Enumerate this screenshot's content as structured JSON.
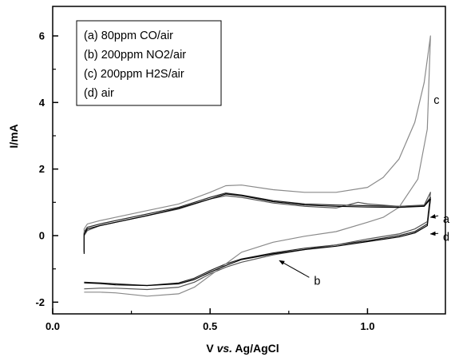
{
  "chart_data": {
    "type": "line",
    "title": "",
    "xlabel_parts": [
      "V ",
      "vs.",
      " Ag/AgCl"
    ],
    "ylabel": "I/mA",
    "xlim": [
      0.0,
      1.25
    ],
    "ylim": [
      -2.3,
      6.5
    ],
    "x_ticks": [
      0.0,
      0.5,
      1.0
    ],
    "x_tick_labels": [
      "0.0",
      "0.5",
      "1.0"
    ],
    "y_ticks": [
      -2,
      0,
      2,
      4,
      6
    ],
    "y_tick_labels": [
      "-2",
      "0",
      "2",
      "4",
      "6"
    ],
    "grid": false,
    "legend_position": "top-left",
    "legend": [
      "(a) 80ppm CO/air",
      "(b) 200ppm NO2/air",
      "(c) 200ppm H2S/air",
      "(d) air"
    ],
    "series": [
      {
        "name": "(a) 80ppm CO/air",
        "id": "a",
        "color": "#222222",
        "x": [
          0.1,
          0.1,
          0.11,
          0.15,
          0.2,
          0.3,
          0.4,
          0.5,
          0.55,
          0.6,
          0.7,
          0.8,
          0.9,
          1.0,
          1.1,
          1.18,
          1.2,
          1.19,
          1.15,
          1.1,
          1.0,
          0.9,
          0.8,
          0.7,
          0.6,
          0.55,
          0.5,
          0.45,
          0.4,
          0.3,
          0.2,
          0.15,
          0.1
        ],
        "y": [
          -0.5,
          0.1,
          0.25,
          0.35,
          0.45,
          0.65,
          0.85,
          1.15,
          1.28,
          1.22,
          1.05,
          0.95,
          0.92,
          0.9,
          0.88,
          0.9,
          1.15,
          0.35,
          0.12,
          0.0,
          -0.15,
          -0.28,
          -0.38,
          -0.52,
          -0.7,
          -0.85,
          -1.05,
          -1.28,
          -1.42,
          -1.5,
          -1.45,
          -1.42,
          -1.4
        ]
      },
      {
        "name": "(b) 200ppm NO2/air",
        "id": "b",
        "color": "#555555",
        "x": [
          0.1,
          0.1,
          0.11,
          0.15,
          0.2,
          0.3,
          0.4,
          0.5,
          0.55,
          0.6,
          0.7,
          0.8,
          0.9,
          0.97,
          1.0,
          1.1,
          1.18,
          1.2,
          1.19,
          1.15,
          1.1,
          1.0,
          0.9,
          0.8,
          0.7,
          0.6,
          0.55,
          0.5,
          0.45,
          0.4,
          0.3,
          0.2,
          0.15,
          0.1
        ],
        "y": [
          -0.45,
          0.0,
          0.15,
          0.3,
          0.4,
          0.6,
          0.8,
          1.1,
          1.2,
          1.15,
          0.98,
          0.88,
          0.83,
          1.0,
          0.95,
          0.88,
          0.92,
          1.3,
          0.42,
          0.2,
          0.05,
          -0.1,
          -0.28,
          -0.42,
          -0.58,
          -0.8,
          -0.95,
          -1.15,
          -1.4,
          -1.55,
          -1.62,
          -1.58,
          -1.58,
          -1.6
        ]
      },
      {
        "name": "(c) 200ppm H2S/air",
        "id": "c",
        "color": "#8a8a8a",
        "x": [
          0.1,
          0.1,
          0.11,
          0.15,
          0.2,
          0.3,
          0.4,
          0.5,
          0.55,
          0.6,
          0.7,
          0.8,
          0.9,
          1.0,
          1.05,
          1.1,
          1.15,
          1.18,
          1.2,
          1.19,
          1.16,
          1.1,
          1.05,
          1.0,
          0.9,
          0.8,
          0.7,
          0.6,
          0.55,
          0.5,
          0.45,
          0.4,
          0.3,
          0.2,
          0.15,
          0.1
        ],
        "y": [
          -0.35,
          0.2,
          0.35,
          0.45,
          0.55,
          0.75,
          0.95,
          1.3,
          1.5,
          1.52,
          1.38,
          1.3,
          1.3,
          1.45,
          1.75,
          2.3,
          3.4,
          4.6,
          6.0,
          3.2,
          1.7,
          0.85,
          0.55,
          0.4,
          0.12,
          -0.02,
          -0.2,
          -0.5,
          -0.85,
          -1.2,
          -1.55,
          -1.75,
          -1.82,
          -1.72,
          -1.7,
          -1.7
        ]
      },
      {
        "name": "(d) air",
        "id": "d",
        "color": "#000000",
        "x": [
          0.1,
          0.1,
          0.11,
          0.15,
          0.2,
          0.3,
          0.4,
          0.5,
          0.55,
          0.6,
          0.7,
          0.8,
          0.9,
          1.0,
          1.1,
          1.18,
          1.2,
          1.19,
          1.15,
          1.1,
          1.0,
          0.9,
          0.8,
          0.7,
          0.6,
          0.55,
          0.5,
          0.45,
          0.4,
          0.3,
          0.2,
          0.15,
          0.1
        ],
        "y": [
          -0.55,
          0.05,
          0.2,
          0.3,
          0.4,
          0.6,
          0.82,
          1.1,
          1.25,
          1.2,
          1.02,
          0.92,
          0.88,
          0.86,
          0.85,
          0.88,
          1.1,
          0.3,
          0.08,
          -0.04,
          -0.18,
          -0.32,
          -0.42,
          -0.55,
          -0.72,
          -0.9,
          -1.1,
          -1.32,
          -1.45,
          -1.5,
          -1.48,
          -1.44,
          -1.42
        ]
      }
    ],
    "annotations": [
      {
        "label": "a",
        "arrow": true,
        "tip": [
          1.2,
          0.55
        ],
        "text_at": [
          1.24,
          0.5
        ]
      },
      {
        "label": "b",
        "arrow": true,
        "tip": [
          0.72,
          -0.75
        ],
        "text_at": [
          0.83,
          -1.35
        ]
      },
      {
        "label": "c",
        "arrow": false,
        "text_at": [
          1.21,
          4.08
        ]
      },
      {
        "label": "d",
        "arrow": true,
        "tip": [
          1.2,
          0.05
        ],
        "text_at": [
          1.24,
          -0.03
        ]
      }
    ]
  }
}
